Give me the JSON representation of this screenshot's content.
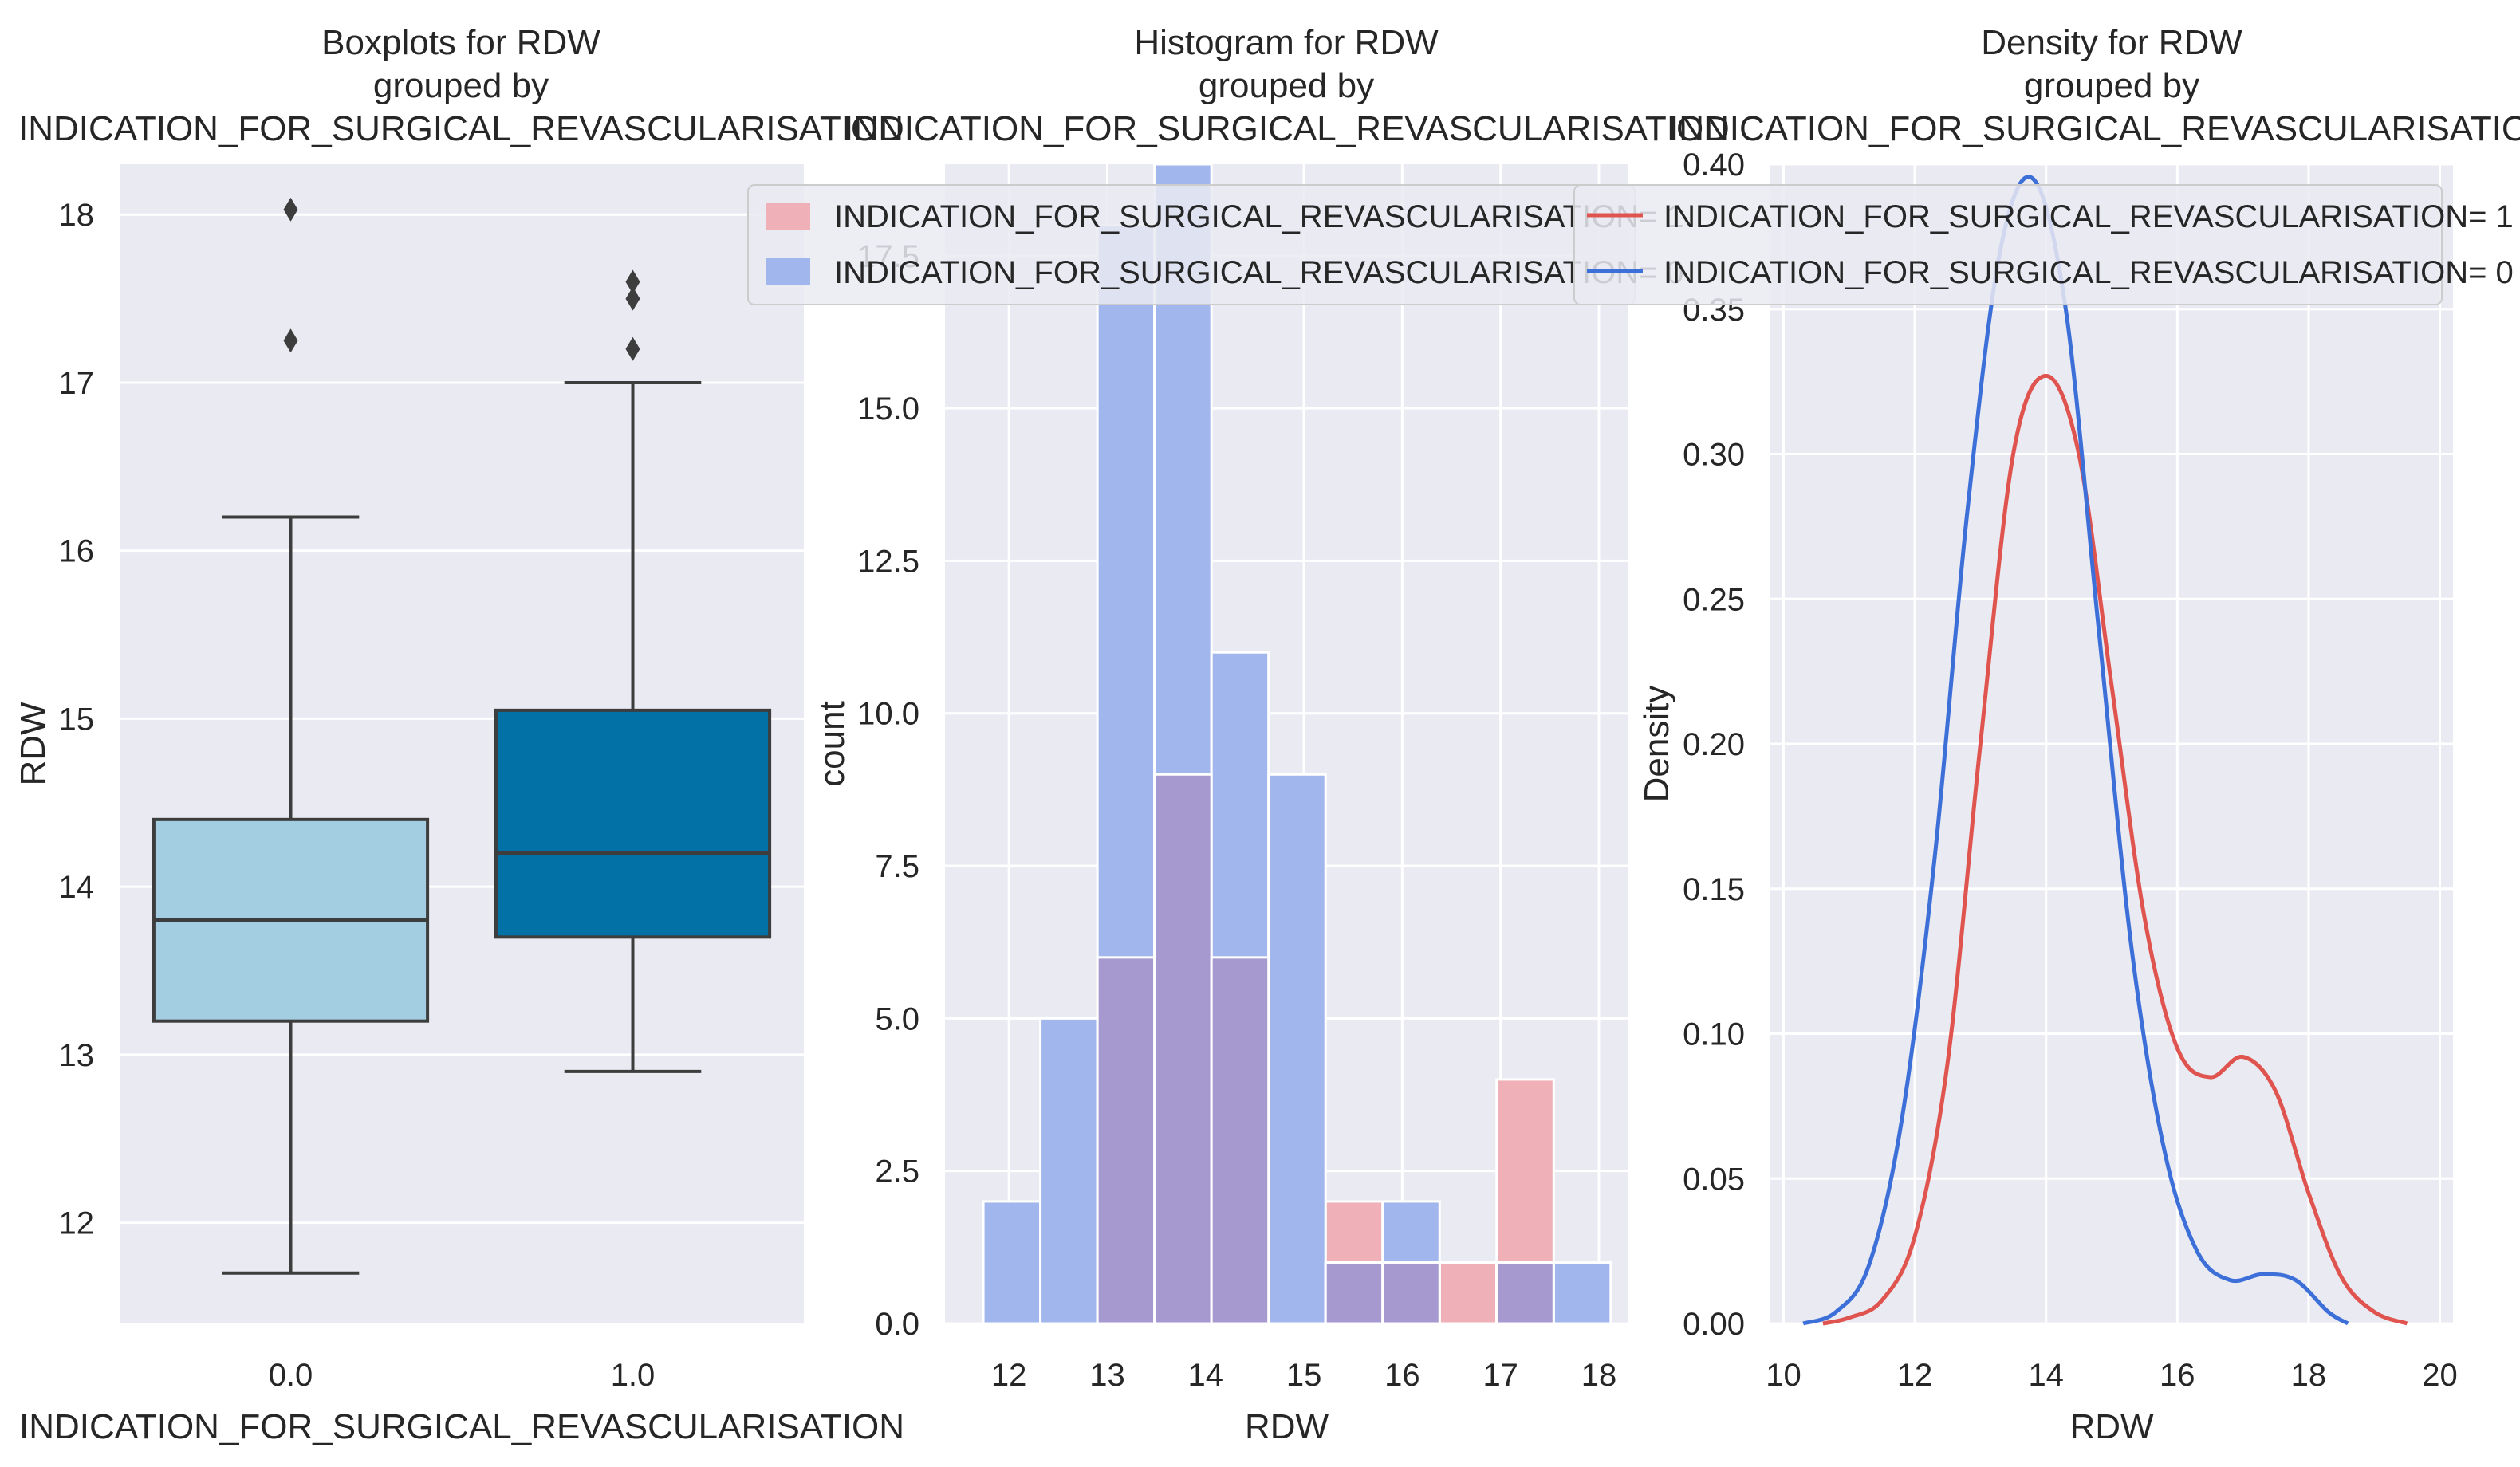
{
  "colors": {
    "panel_bg": "#eaeaf2",
    "grid": "#ffffff",
    "text": "#262626",
    "box_group0": "#a3cde0",
    "box_group1": "#0272a6",
    "box_edge": "#3d3d3d",
    "hist_group1": "#efb1b7",
    "hist_group0": "#a0b6ec",
    "hist_overlap": "#a599cf",
    "kde_group1": "#e05450",
    "kde_group0": "#3d6fd8"
  },
  "chart_data": [
    {
      "type": "box",
      "title_lines": [
        "Boxplots for RDW",
        "grouped by",
        "INDICATION_FOR_SURGICAL_REVASCULARISATION"
      ],
      "xlabel": "INDICATION_FOR_SURGICAL_REVASCULARISATION",
      "ylabel": "RDW",
      "ylim": [
        11.4,
        18.3
      ],
      "yticks": [
        12,
        13,
        14,
        15,
        16,
        17,
        18
      ],
      "categories": [
        "0.0",
        "1.0"
      ],
      "boxes": [
        {
          "name": "0.0",
          "whisker_low": 11.7,
          "q1": 13.2,
          "median": 13.8,
          "q3": 14.4,
          "whisker_high": 16.2,
          "outliers": [
            17.25,
            18.03
          ]
        },
        {
          "name": "1.0",
          "whisker_low": 12.9,
          "q1": 13.7,
          "median": 14.2,
          "q3": 15.05,
          "whisker_high": 17.0,
          "outliers": [
            17.2,
            17.5,
            17.6
          ]
        }
      ]
    },
    {
      "type": "bar",
      "subtype": "histogram",
      "title_lines": [
        "Histogram for RDW",
        "grouped by",
        "INDICATION_FOR_SURGICAL_REVASCULARISATION"
      ],
      "xlabel": "RDW",
      "ylabel": "count",
      "xlim": [
        11.35,
        18.3
      ],
      "ylim": [
        0,
        19.0
      ],
      "xticks": [
        12,
        13,
        14,
        15,
        16,
        17,
        18
      ],
      "yticks": [
        "0.0",
        "2.5",
        "5.0",
        "7.5",
        "10.0",
        "12.5",
        "15.0",
        "17.5"
      ],
      "bin_width": 0.58,
      "series": [
        {
          "name": "INDICATION_FOR_SURGICAL_REVASCULARISATION= 1",
          "bins": [
            [
              12.9,
              6
            ],
            [
              13.48,
              9
            ],
            [
              14.06,
              6
            ],
            [
              15.22,
              2
            ],
            [
              15.8,
              1
            ],
            [
              16.38,
              1
            ],
            [
              16.96,
              4
            ],
            [
              17.54,
              0
            ]
          ]
        },
        {
          "name": "INDICATION_FOR_SURGICAL_REVASCULARISATION= 0",
          "bins": [
            [
              11.74,
              2
            ],
            [
              12.32,
              5
            ],
            [
              12.9,
              18
            ],
            [
              13.48,
              19
            ],
            [
              14.06,
              11
            ],
            [
              14.64,
              9
            ],
            [
              15.22,
              1
            ],
            [
              15.8,
              2
            ],
            [
              16.96,
              1
            ],
            [
              17.54,
              1
            ]
          ]
        }
      ]
    },
    {
      "type": "line",
      "subtype": "density",
      "title_lines": [
        "Density for RDW",
        "grouped by",
        "INDICATION_FOR_SURGICAL_REVASCULARISATION"
      ],
      "xlabel": "RDW",
      "ylabel": "Density",
      "xlim": [
        9.8,
        20.2
      ],
      "ylim": [
        0,
        0.4
      ],
      "xticks": [
        10,
        12,
        14,
        16,
        18,
        20
      ],
      "yticks": [
        "0.00",
        "0.05",
        "0.10",
        "0.15",
        "0.20",
        "0.25",
        "0.30",
        "0.35",
        "0.40"
      ],
      "series": [
        {
          "name": "INDICATION_FOR_SURGICAL_REVASCULARISATION= 1",
          "x": [
            10.6,
            11.0,
            11.5,
            12.0,
            12.5,
            13.0,
            13.5,
            14.0,
            14.5,
            15.0,
            15.5,
            16.0,
            16.5,
            17.0,
            17.5,
            18.0,
            18.5,
            19.0,
            19.5
          ],
          "y": [
            0.0,
            0.002,
            0.008,
            0.03,
            0.09,
            0.2,
            0.3,
            0.327,
            0.3,
            0.22,
            0.14,
            0.095,
            0.085,
            0.092,
            0.08,
            0.045,
            0.016,
            0.004,
            0.0
          ]
        },
        {
          "name": "INDICATION_FOR_SURGICAL_REVASCULARISATION= 0",
          "x": [
            10.3,
            10.8,
            11.3,
            11.8,
            12.3,
            12.8,
            13.3,
            13.8,
            14.3,
            14.8,
            15.3,
            15.8,
            16.3,
            16.8,
            17.3,
            17.8,
            18.3,
            18.6
          ],
          "y": [
            0.0,
            0.004,
            0.02,
            0.07,
            0.16,
            0.28,
            0.37,
            0.395,
            0.35,
            0.24,
            0.13,
            0.06,
            0.025,
            0.015,
            0.017,
            0.015,
            0.004,
            0.0
          ]
        }
      ]
    }
  ],
  "legend": {
    "hist_items": [
      "INDICATION_FOR_SURGICAL_REVASCULARISATION= 1",
      "INDICATION_FOR_SURGICAL_REVASCULARISATION= 0"
    ],
    "kde_items": [
      "INDICATION_FOR_SURGICAL_REVASCULARISATION= 1",
      "INDICATION_FOR_SURGICAL_REVASCULARISATION= 0"
    ]
  }
}
